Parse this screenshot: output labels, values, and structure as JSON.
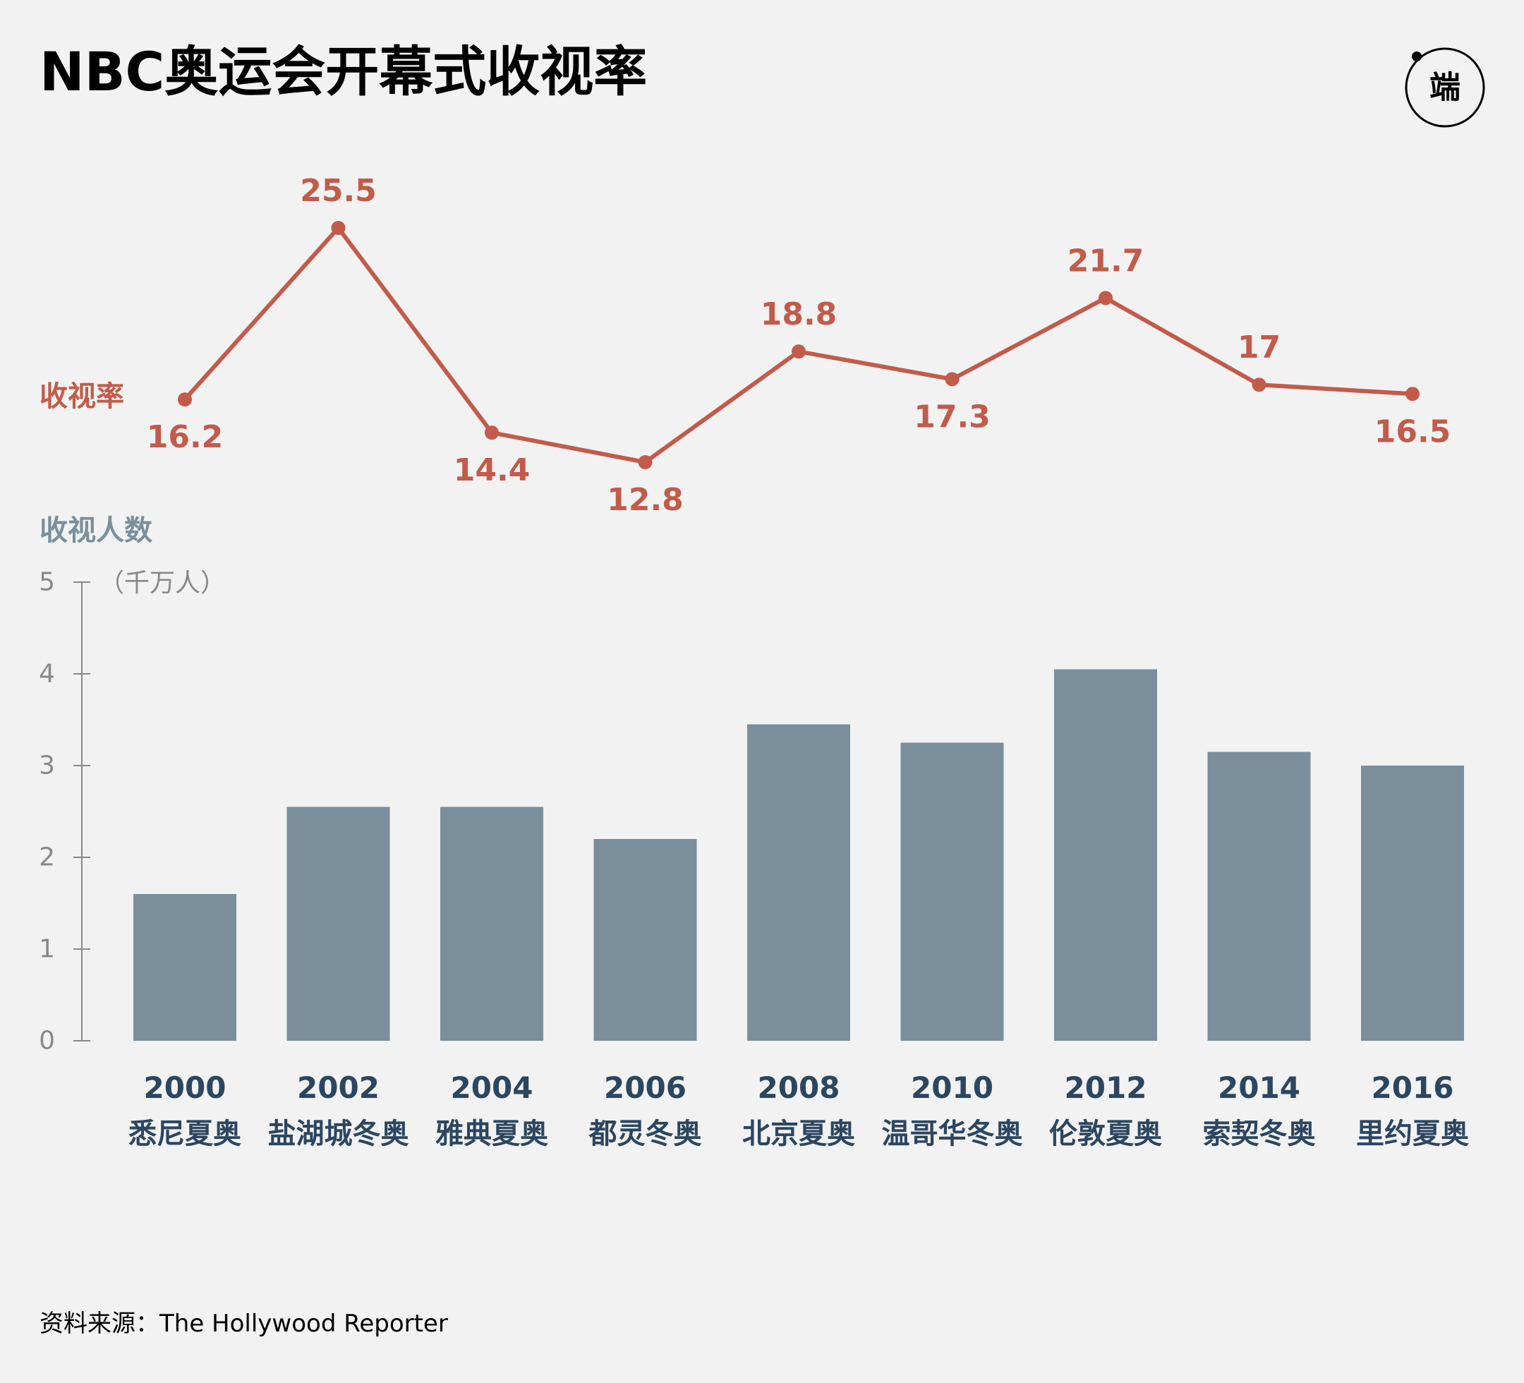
{
  "title": "NBC奥运会开幕式收视率",
  "logo_text": "端",
  "source": "资料来源：The Hollywood Reporter",
  "colors": {
    "background": "#f2f2f2",
    "line": "#c25b4a",
    "bar": "#7a8f9b",
    "axis_label": "#888888",
    "category_label": "#2b4660",
    "title": "#000000"
  },
  "chart_data": [
    {
      "type": "line",
      "ylabel": "收视率",
      "categories": [
        "2000",
        "2002",
        "2004",
        "2006",
        "2008",
        "2010",
        "2012",
        "2014",
        "2016"
      ],
      "values": [
        16.2,
        25.5,
        14.4,
        12.8,
        18.8,
        17.3,
        21.7,
        17,
        16.5
      ],
      "labels": [
        "16.2",
        "25.5",
        "14.4",
        "12.8",
        "18.8",
        "17.3",
        "21.7",
        "17",
        "16.5"
      ],
      "label_position": [
        "below",
        "above",
        "below",
        "below",
        "above",
        "below",
        "above",
        "above",
        "below"
      ]
    },
    {
      "type": "bar",
      "ylabel": "收视人数",
      "unit": "（千万人）",
      "categories": [
        "2000",
        "2002",
        "2004",
        "2006",
        "2008",
        "2010",
        "2012",
        "2014",
        "2016"
      ],
      "sublabels": [
        "悉尼夏奥",
        "盐湖城冬奥",
        "雅典夏奥",
        "都灵冬奥",
        "北京夏奥",
        "温哥华冬奥",
        "伦敦夏奥",
        "索契冬奥",
        "里约夏奥"
      ],
      "values": [
        1.6,
        2.55,
        2.55,
        2.2,
        3.45,
        3.25,
        4.05,
        3.15,
        3.0
      ],
      "ylim": [
        0,
        5
      ],
      "yticks": [
        "0",
        "1",
        "2",
        "3",
        "4",
        "5"
      ]
    }
  ]
}
